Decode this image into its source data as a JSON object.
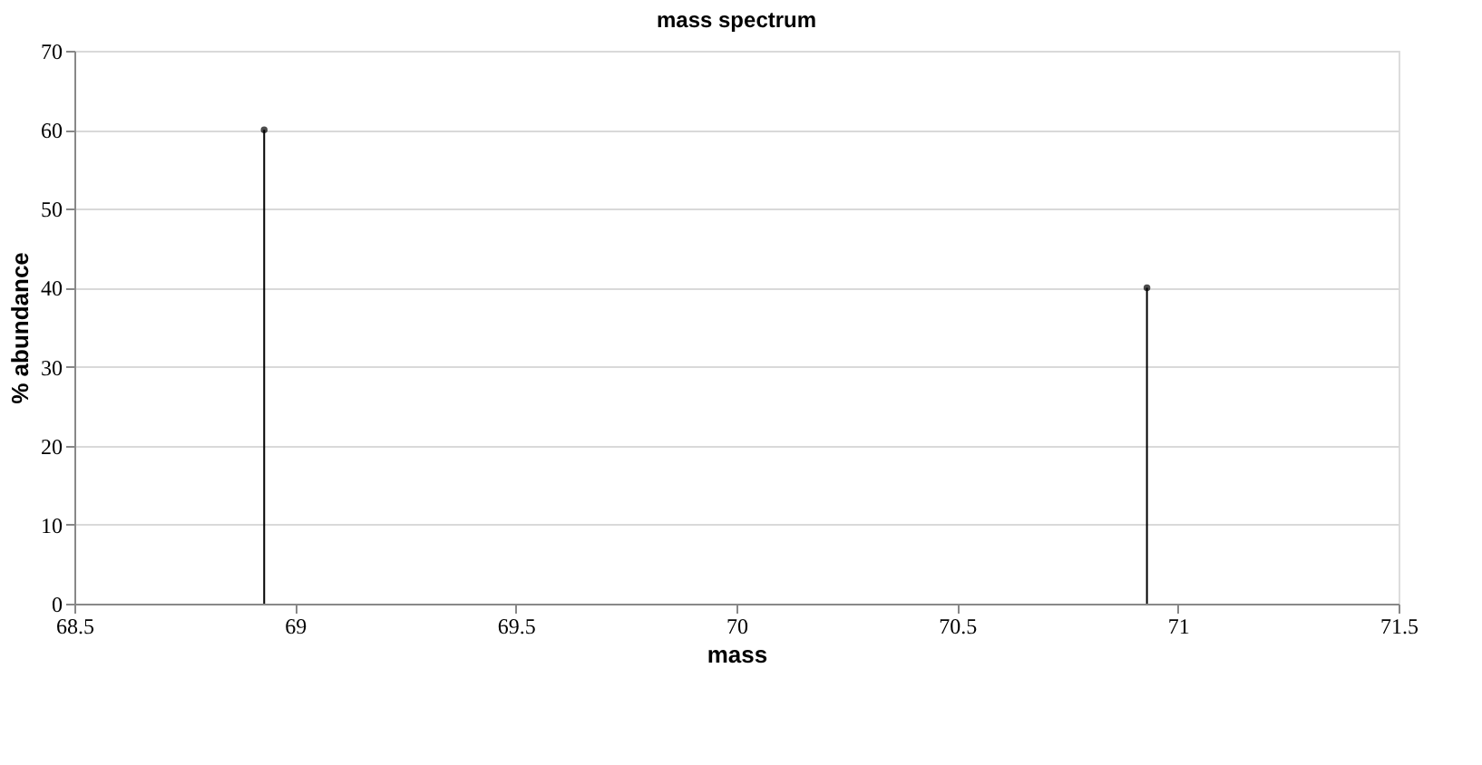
{
  "chart_data": {
    "type": "lollipop",
    "title": "mass spectrum",
    "xlabel": "mass",
    "ylabel": "% abundance",
    "x": [
      68.93,
      70.93
    ],
    "values": [
      60,
      40
    ],
    "color": "#000000",
    "xlim": [
      68.5,
      71.5
    ],
    "xticks": [
      68.5,
      69,
      69.5,
      70,
      70.5,
      71,
      71.5
    ],
    "ylim": [
      0,
      70
    ],
    "yticks": [
      0,
      10,
      20,
      30,
      40,
      50,
      60,
      70
    ],
    "grid": "y",
    "marker": "circle"
  }
}
